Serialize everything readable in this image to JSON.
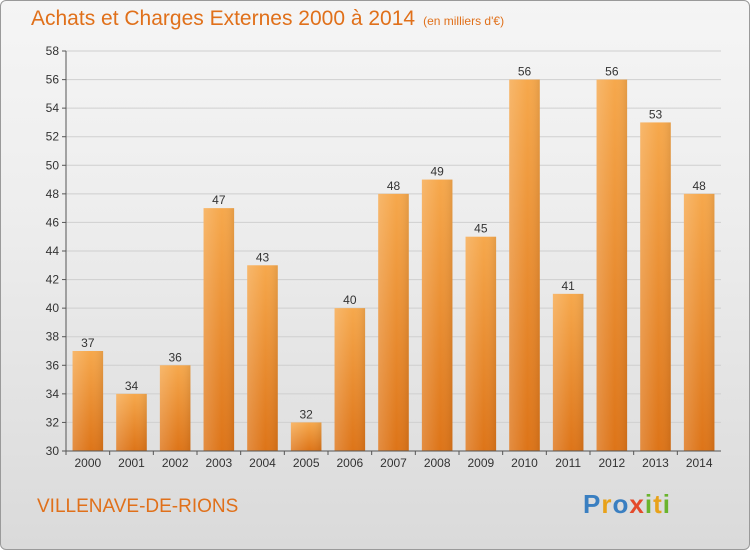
{
  "title": "Achats et Charges Externes 2000 à 2014",
  "unit_note": "(en milliers d'€)",
  "city": "VILLENAVE-DE-RIONS",
  "logo": {
    "letters": [
      "P",
      "r",
      "o",
      "x",
      "i",
      "t",
      "i"
    ],
    "colors": [
      "#3a7fc1",
      "#e8a21a",
      "#3a7fc1",
      "#e44a2b",
      "#6ab42d",
      "#e8a21a",
      "#6ab42d"
    ]
  },
  "colors": {
    "accent": "#e0701a",
    "bar_top": "#f6a84c",
    "bar_bottom": "#dd7418"
  },
  "chart_data": {
    "type": "bar",
    "title": "Achats et Charges Externes 2000 à 2014",
    "categories": [
      "2000",
      "2001",
      "2002",
      "2003",
      "2004",
      "2005",
      "2006",
      "2007",
      "2008",
      "2009",
      "2010",
      "2011",
      "2012",
      "2013",
      "2014"
    ],
    "values": [
      37,
      34,
      36,
      47,
      43,
      32,
      40,
      48,
      49,
      45,
      56,
      41,
      56,
      53,
      48
    ],
    "ylim": [
      30,
      58
    ],
    "yticks": [
      30,
      32,
      34,
      36,
      38,
      40,
      42,
      44,
      46,
      48,
      50,
      52,
      54,
      56,
      58
    ],
    "grid": true
  }
}
